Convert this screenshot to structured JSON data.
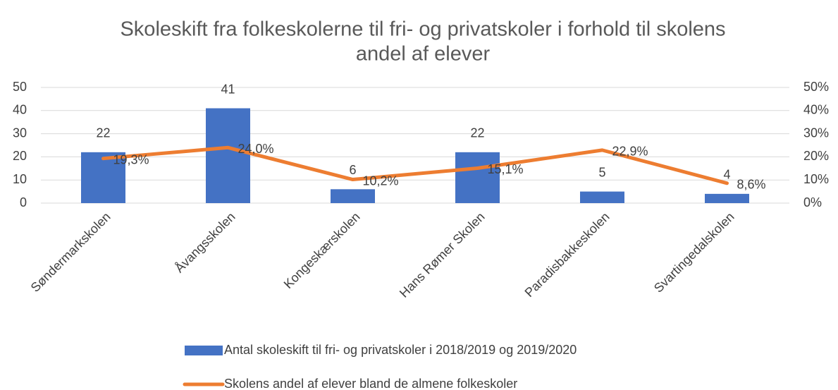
{
  "chart_data": {
    "type": "bar",
    "title": [
      "Skoleskift fra folkeskolerne til fri- og privatskoler i forhold til skolens",
      "andel af elever"
    ],
    "categories": [
      "Søndermarkskolen",
      "Åvangsskolen",
      "Kongeskærskolen",
      "Hans Rømer Skolen",
      "Paradisbakkeskolen",
      "Svartingedalskolen"
    ],
    "series": [
      {
        "name": "Antal skoleskift til fri- og privatskoler i 2018/2019 og 2019/2020",
        "type": "bar",
        "color": "#4472c4",
        "values": [
          22,
          41,
          6,
          22,
          5,
          4
        ]
      },
      {
        "name": "Skolens andel af elever bland de almene folkeskoler",
        "type": "line",
        "axis": "y2",
        "color": "#ed7d31",
        "values": [
          19.3,
          24.0,
          10.2,
          15.1,
          22.9,
          8.6
        ],
        "value_labels": [
          "19,3%",
          "24,0%",
          "10,2%",
          "15,1%",
          "22,9%",
          "8,6%"
        ]
      }
    ],
    "ylim": [
      0,
      50
    ],
    "yticks": [
      0,
      10,
      20,
      30,
      40,
      50
    ],
    "y2lim": [
      0,
      50
    ],
    "y2ticks": [
      {
        "value": 0,
        "label": "0%"
      },
      {
        "value": 10,
        "label": "10%"
      },
      {
        "value": 20,
        "label": "20%"
      },
      {
        "value": 30,
        "label": "30%"
      },
      {
        "value": 40,
        "label": "40%"
      },
      {
        "value": 50,
        "label": "50%"
      }
    ],
    "grid": true,
    "legend": "bottom"
  }
}
